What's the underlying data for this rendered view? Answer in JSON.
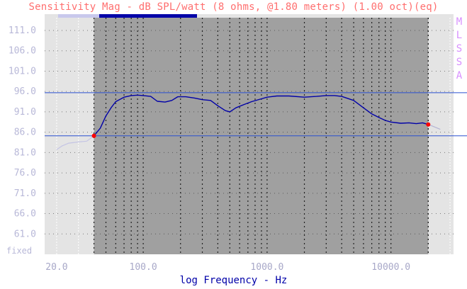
{
  "header": {
    "title": "Sensitivity Mag - dB SPL/watt (8 ohms, @1.80 meters) (1.00 oct)(eq)",
    "side_label": [
      "M",
      "L",
      "S",
      "S",
      "A"
    ]
  },
  "colors": {
    "plot_bg": "#a0a0a0",
    "side_bg": "#e4e4e4",
    "trace": "#0000a8",
    "ref_lines": "#2a50d0",
    "markers": "#ff0000",
    "title": "#ff6e6e",
    "ticks": "#b8b8d8"
  },
  "chart_data": {
    "type": "line",
    "title": "Sensitivity Mag - dB SPL/watt (8 ohms, @1.80 meters) (1.00 oct)(eq)",
    "xlabel": "log Frequency - Hz",
    "ylabel": "",
    "x_scale": "log",
    "xlim": [
      16,
      32000
    ],
    "ylim": [
      56,
      115
    ],
    "grid": true,
    "y_ticks": [
      "111.0",
      "106.0",
      "101.0",
      "96.0",
      "91.0",
      "86.0",
      "81.0",
      "76.0",
      "71.0",
      "66.0",
      "61.0"
    ],
    "y_tick_values": [
      111,
      106,
      101,
      96,
      91,
      86,
      81,
      76,
      71,
      66,
      61
    ],
    "y_bottom_note": "fixed",
    "x_ticks": [
      "20.0",
      "100.0",
      "1000.0",
      "10000.0"
    ],
    "x_tick_values": [
      20,
      100,
      1000,
      10000
    ],
    "analysis_band_hz": [
      40,
      20000
    ],
    "reference_levels": [
      95.7,
      85.1
    ],
    "markers": [
      {
        "x": 40,
        "y": 85.1
      },
      {
        "x": 20000,
        "y": 87.9
      }
    ],
    "series": [
      {
        "values": [
          {
            "x": 40,
            "y": 85.1
          },
          {
            "x": 45,
            "y": 87.0
          },
          {
            "x": 50,
            "y": 90.0
          },
          {
            "x": 55,
            "y": 92.0
          },
          {
            "x": 60,
            "y": 93.5
          },
          {
            "x": 70,
            "y": 94.6
          },
          {
            "x": 80,
            "y": 95.0
          },
          {
            "x": 90,
            "y": 95.1
          },
          {
            "x": 100,
            "y": 95.0
          },
          {
            "x": 115,
            "y": 94.8
          },
          {
            "x": 130,
            "y": 93.6
          },
          {
            "x": 150,
            "y": 93.4
          },
          {
            "x": 170,
            "y": 93.8
          },
          {
            "x": 190,
            "y": 94.7
          },
          {
            "x": 220,
            "y": 94.7
          },
          {
            "x": 260,
            "y": 94.4
          },
          {
            "x": 300,
            "y": 94.0
          },
          {
            "x": 350,
            "y": 93.8
          },
          {
            "x": 400,
            "y": 92.5
          },
          {
            "x": 460,
            "y": 91.3
          },
          {
            "x": 500,
            "y": 91.0
          },
          {
            "x": 560,
            "y": 92.0
          },
          {
            "x": 650,
            "y": 92.8
          },
          {
            "x": 750,
            "y": 93.5
          },
          {
            "x": 900,
            "y": 94.2
          },
          {
            "x": 1000,
            "y": 94.6
          },
          {
            "x": 1200,
            "y": 94.9
          },
          {
            "x": 1500,
            "y": 94.9
          },
          {
            "x": 2000,
            "y": 94.6
          },
          {
            "x": 2500,
            "y": 94.8
          },
          {
            "x": 3000,
            "y": 95.0
          },
          {
            "x": 3500,
            "y": 95.0
          },
          {
            "x": 4000,
            "y": 94.8
          },
          {
            "x": 5000,
            "y": 93.8
          },
          {
            "x": 6000,
            "y": 92.0
          },
          {
            "x": 7000,
            "y": 90.5
          },
          {
            "x": 8000,
            "y": 89.6
          },
          {
            "x": 9000,
            "y": 88.9
          },
          {
            "x": 10000,
            "y": 88.5
          },
          {
            "x": 12000,
            "y": 88.2
          },
          {
            "x": 14000,
            "y": 88.3
          },
          {
            "x": 16000,
            "y": 88.1
          },
          {
            "x": 18000,
            "y": 88.3
          },
          {
            "x": 20000,
            "y": 87.9
          }
        ]
      },
      {
        "values": [
          {
            "x": 20,
            "y": 81.7
          },
          {
            "x": 22,
            "y": 82.6
          },
          {
            "x": 25,
            "y": 83.3
          },
          {
            "x": 30,
            "y": 83.6
          },
          {
            "x": 35,
            "y": 83.8
          },
          {
            "x": 40,
            "y": 85.1
          }
        ]
      },
      {
        "values": [
          {
            "x": 20000,
            "y": 87.9
          },
          {
            "x": 22000,
            "y": 87.4
          },
          {
            "x": 25000,
            "y": 86.7
          }
        ]
      }
    ]
  }
}
